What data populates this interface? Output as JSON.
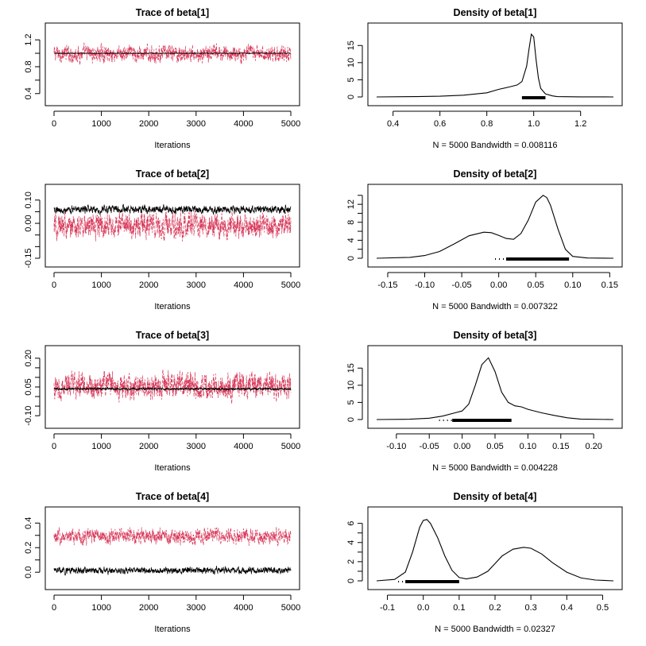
{
  "colors": {
    "chain1": "#000000",
    "chain2": "#d8395a"
  },
  "chart_data": [
    {
      "type": "line",
      "id": "trace1",
      "title": "Trace of beta[1]",
      "xlabel": "Iterations",
      "xlim": [
        0,
        5000
      ],
      "ylim": [
        0.35,
        1.32
      ],
      "xticks": [
        0,
        1000,
        2000,
        3000,
        4000,
        5000
      ],
      "yticks": [
        0.4,
        0.6,
        0.8,
        1.0,
        1.2
      ],
      "yticklabels": [
        "0.4",
        "",
        "0.8",
        "",
        "1.2"
      ],
      "series": [
        {
          "color": "#d8395a",
          "center": 0.99,
          "spread": 0.09,
          "style": "dashed"
        },
        {
          "color": "#000000",
          "center": 1.0,
          "spread": 0.004,
          "style": "solid"
        }
      ]
    },
    {
      "type": "line",
      "id": "density1",
      "title": "Density of beta[1]",
      "xlabel": "N = 5000   Bandwidth = 0.008116",
      "xlim": [
        0.33,
        1.34
      ],
      "ylim": [
        0,
        19
      ],
      "xticks": [
        0.4,
        0.6,
        0.8,
        1.0,
        1.2
      ],
      "xticklabels": [
        "0.4",
        "0.6",
        "0.8",
        "1.0",
        "1.2"
      ],
      "yticks": [
        0,
        5,
        10,
        15
      ],
      "yticklabels": [
        "0",
        "5",
        "10",
        "15"
      ],
      "curve": {
        "x": [
          0.33,
          0.5,
          0.6,
          0.7,
          0.8,
          0.85,
          0.9,
          0.93,
          0.95,
          0.97,
          0.98,
          0.99,
          1.0,
          1.01,
          1.02,
          1.03,
          1.05,
          1.08,
          1.1,
          1.2,
          1.34
        ],
        "y": [
          0,
          0.1,
          0.2,
          0.5,
          1.2,
          2.2,
          3.0,
          3.5,
          4.5,
          9,
          14,
          18.3,
          17.5,
          11,
          5.5,
          2.5,
          0.9,
          0.3,
          0.1,
          0.02,
          0
        ]
      },
      "rug": {
        "from": 0.95,
        "to": 1.05,
        "sparse_from": 0.95,
        "sparse_to": 0.97
      }
    },
    {
      "type": "line",
      "id": "trace2",
      "title": "Trace of beta[2]",
      "xlabel": "Iterations",
      "xlim": [
        0,
        5000
      ],
      "ylim": [
        -0.15,
        0.13
      ],
      "xticks": [
        0,
        1000,
        2000,
        3000,
        4000,
        5000
      ],
      "yticks": [
        -0.15,
        -0.1,
        -0.05,
        0.0,
        0.05,
        0.1
      ],
      "yticklabels": [
        "-0.15",
        "",
        "",
        "0.00",
        "",
        "0.10"
      ],
      "series": [
        {
          "color": "#d8395a",
          "center": -0.01,
          "spread": 0.04,
          "style": "dashed"
        },
        {
          "color": "#000000",
          "center": 0.06,
          "spread": 0.012,
          "style": "solid"
        }
      ]
    },
    {
      "type": "line",
      "id": "density2",
      "title": "Density of beta[2]",
      "xlabel": "N = 5000   Bandwidth = 0.007322",
      "xlim": [
        -0.165,
        0.155
      ],
      "ylim": [
        0,
        14.5
      ],
      "xticks": [
        -0.15,
        -0.1,
        -0.05,
        0.0,
        0.05,
        0.1,
        0.15
      ],
      "xticklabels": [
        "-0.15",
        "-0.10",
        "-0.05",
        "0.00",
        "0.05",
        "0.10",
        "0.15"
      ],
      "yticks": [
        0,
        2,
        4,
        6,
        8,
        10,
        12,
        14
      ],
      "yticklabels": [
        "0",
        "",
        "4",
        "",
        "8",
        "",
        "12",
        ""
      ],
      "curve": {
        "x": [
          -0.165,
          -0.12,
          -0.1,
          -0.08,
          -0.06,
          -0.04,
          -0.02,
          -0.01,
          0.0,
          0.01,
          0.02,
          0.03,
          0.04,
          0.05,
          0.06,
          0.065,
          0.07,
          0.08,
          0.09,
          0.1,
          0.12,
          0.155
        ],
        "y": [
          0,
          0.2,
          0.6,
          1.5,
          3.2,
          5.0,
          5.8,
          5.7,
          5.1,
          4.4,
          4.2,
          5.5,
          8.5,
          12.5,
          14.0,
          13.5,
          11.8,
          6.5,
          2.0,
          0.4,
          0.05,
          0
        ]
      },
      "rug": {
        "from": 0.01,
        "to": 0.095,
        "sparse_from": -0.005,
        "sparse_to": 0.01
      }
    },
    {
      "type": "line",
      "id": "trace3",
      "title": "Trace of beta[3]",
      "xlabel": "Iterations",
      "xlim": [
        0,
        5000
      ],
      "ylim": [
        -0.12,
        0.22
      ],
      "xticks": [
        0,
        1000,
        2000,
        3000,
        4000,
        5000
      ],
      "yticks": [
        -0.1,
        -0.05,
        0.0,
        0.05,
        0.1,
        0.15,
        0.2
      ],
      "yticklabels": [
        "-0.10",
        "",
        "",
        "0.05",
        "",
        "",
        "0.20"
      ],
      "series": [
        {
          "color": "#d8395a",
          "center": 0.055,
          "spread": 0.05,
          "style": "dashed"
        },
        {
          "color": "#000000",
          "center": 0.04,
          "spread": 0.004,
          "style": "solid"
        }
      ]
    },
    {
      "type": "line",
      "id": "density3",
      "title": "Density of beta[3]",
      "xlabel": "N = 5000   Bandwidth = 0.004228",
      "xlim": [
        -0.13,
        0.23
      ],
      "ylim": [
        0,
        19
      ],
      "xticks": [
        -0.1,
        -0.05,
        0.0,
        0.05,
        0.1,
        0.15,
        0.2
      ],
      "xticklabels": [
        "-0.10",
        "-0.05",
        "0.00",
        "0.05",
        "0.10",
        "0.15",
        "0.20"
      ],
      "yticks": [
        0,
        5,
        10,
        15
      ],
      "yticklabels": [
        "0",
        "5",
        "10",
        "15"
      ],
      "curve": {
        "x": [
          -0.13,
          -0.08,
          -0.05,
          -0.03,
          -0.01,
          0.0,
          0.01,
          0.02,
          0.03,
          0.04,
          0.05,
          0.06,
          0.07,
          0.08,
          0.09,
          0.1,
          0.12,
          0.14,
          0.16,
          0.18,
          0.23
        ],
        "y": [
          0,
          0.1,
          0.4,
          1.0,
          2.0,
          2.5,
          4.5,
          10,
          16,
          18.0,
          14,
          8,
          5,
          4.0,
          3.7,
          3.0,
          2.0,
          1.2,
          0.5,
          0.15,
          0
        ]
      },
      "rug": {
        "from": -0.015,
        "to": 0.075,
        "sparse_from": -0.035,
        "sparse_to": -0.015
      }
    },
    {
      "type": "line",
      "id": "trace4",
      "title": "Trace of beta[4]",
      "xlabel": "Iterations",
      "xlim": [
        0,
        5000
      ],
      "ylim": [
        -0.07,
        0.46
      ],
      "xticks": [
        0,
        1000,
        2000,
        3000,
        4000,
        5000
      ],
      "yticks": [
        0.0,
        0.1,
        0.2,
        0.3,
        0.4
      ],
      "yticklabels": [
        "0.0",
        "",
        "0.2",
        "",
        "0.4"
      ],
      "series": [
        {
          "color": "#d8395a",
          "center": 0.29,
          "spread": 0.045,
          "style": "dashed"
        },
        {
          "color": "#000000",
          "center": 0.015,
          "spread": 0.02,
          "style": "solid"
        }
      ]
    },
    {
      "type": "line",
      "id": "density4",
      "title": "Density of beta[4]",
      "xlabel": "N = 5000   Bandwidth = 0.02327",
      "xlim": [
        -0.13,
        0.53
      ],
      "ylim": [
        0,
        6.8
      ],
      "xticks": [
        -0.1,
        0.0,
        0.1,
        0.2,
        0.3,
        0.4,
        0.5
      ],
      "xticklabels": [
        "-0.1",
        "0.0",
        "0.1",
        "0.2",
        "0.3",
        "0.4",
        "0.5"
      ],
      "yticks": [
        0,
        1,
        2,
        3,
        4,
        5,
        6
      ],
      "yticklabels": [
        "0",
        "",
        "2",
        "",
        "4",
        "",
        "6"
      ],
      "curve": {
        "x": [
          -0.13,
          -0.08,
          -0.05,
          -0.03,
          -0.01,
          0.0,
          0.01,
          0.02,
          0.04,
          0.06,
          0.08,
          0.1,
          0.12,
          0.15,
          0.18,
          0.2,
          0.22,
          0.25,
          0.28,
          0.3,
          0.33,
          0.36,
          0.4,
          0.44,
          0.48,
          0.53
        ],
        "y": [
          0,
          0.15,
          0.9,
          3.0,
          5.6,
          6.3,
          6.4,
          6.0,
          4.5,
          2.6,
          1.1,
          0.35,
          0.2,
          0.4,
          1.0,
          1.8,
          2.6,
          3.3,
          3.5,
          3.4,
          2.8,
          1.9,
          0.9,
          0.3,
          0.08,
          0
        ]
      },
      "rug": {
        "from": -0.05,
        "to": 0.1,
        "sparse_from": -0.07,
        "sparse_to": -0.05
      }
    }
  ]
}
